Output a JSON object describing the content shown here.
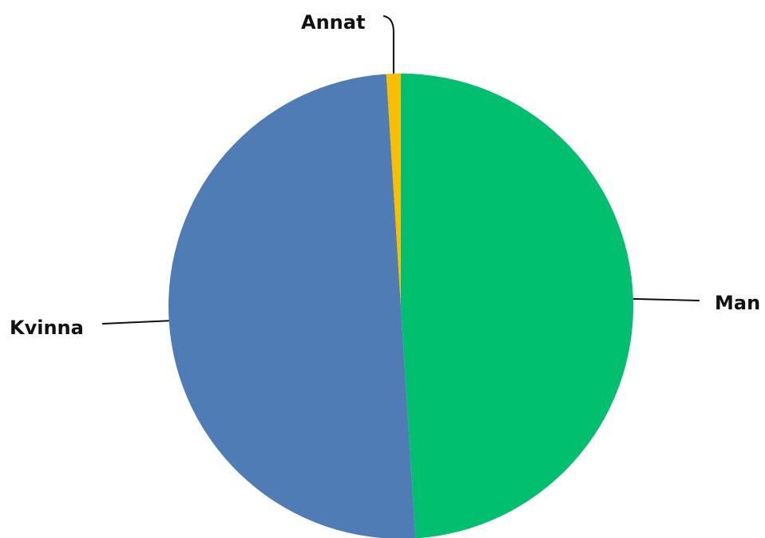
{
  "chart_data": {
    "type": "pie",
    "title": "",
    "slices": [
      {
        "label": "Man",
        "value": 49.0,
        "color": "#00BF6F"
      },
      {
        "label": "Kvinna",
        "value": 50.0,
        "color": "#507CB6"
      },
      {
        "label": "Annat",
        "value": 1.0,
        "color": "#F9BE00"
      }
    ],
    "start_angle_deg": 0,
    "direction": "clockwise",
    "legend": "none",
    "labels": "outside-with-leader-lines"
  }
}
